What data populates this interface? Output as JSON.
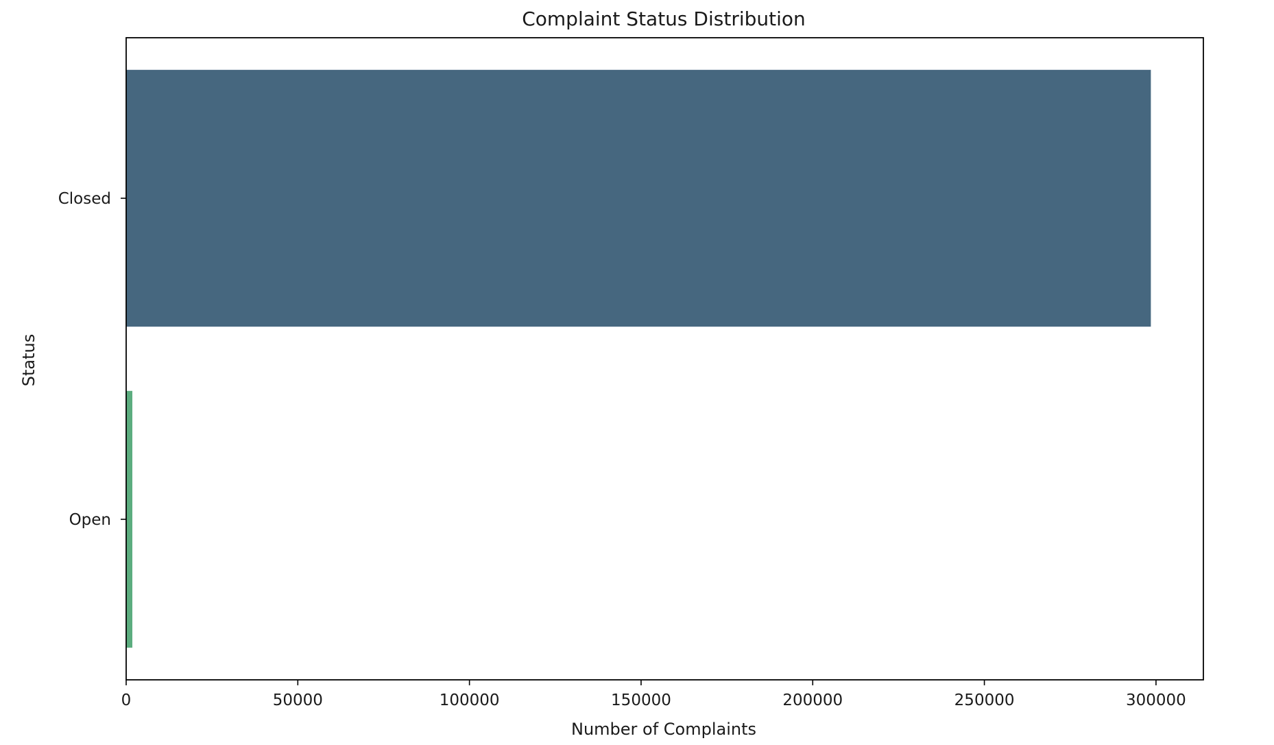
{
  "chart_data": {
    "type": "bar",
    "orientation": "horizontal",
    "title": "Complaint Status Distribution",
    "xlabel": "Number of Complaints",
    "ylabel": "Status",
    "categories": [
      "Closed",
      "Open"
    ],
    "values": [
      298500,
      1800
    ],
    "colors": [
      "#46677f",
      "#5cad7f"
    ],
    "xlim": [
      0,
      313800
    ],
    "xticks": [
      0,
      50000,
      100000,
      150000,
      200000,
      250000,
      300000
    ],
    "xtick_labels": [
      "0",
      "50000",
      "100000",
      "150000",
      "200000",
      "250000",
      "300000"
    ],
    "grid": false,
    "legend": "none"
  }
}
